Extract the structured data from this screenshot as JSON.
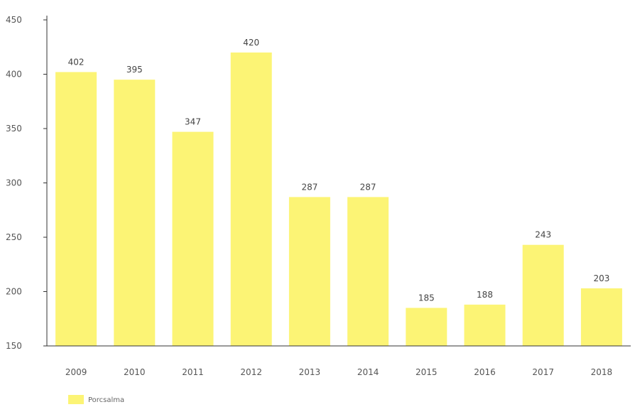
{
  "chart_data": {
    "type": "bar",
    "categories": [
      "2009",
      "2010",
      "2011",
      "2012",
      "2013",
      "2014",
      "2015",
      "2016",
      "2017",
      "2018"
    ],
    "series": [
      {
        "name": "Porcsalma",
        "values": [
          402,
          395,
          347,
          420,
          287,
          287,
          185,
          188,
          243,
          203
        ]
      }
    ],
    "data_labels": [
      "402",
      "395",
      "347",
      "420",
      "287",
      "287",
      "185",
      "188",
      "243",
      "203"
    ],
    "ylim": [
      150,
      450
    ],
    "yticks": [
      "150",
      "200",
      "250",
      "300",
      "350",
      "400",
      "450"
    ],
    "title": "",
    "xlabel": "",
    "ylabel": "",
    "grid": false,
    "legend_position": "bottom-left",
    "bar_color": "#fcf475"
  }
}
